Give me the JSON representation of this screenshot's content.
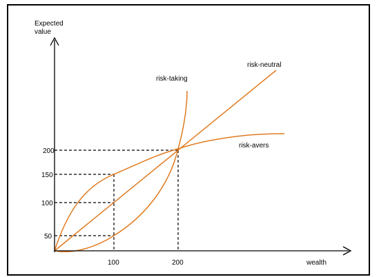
{
  "diagram": {
    "y_axis_label_line1": "Expected",
    "y_axis_label_line2": "value",
    "x_axis_label": "wealth",
    "y_ticks": [
      "200",
      "150",
      "100",
      "50"
    ],
    "x_ticks": [
      "100",
      "200"
    ],
    "curve_labels": {
      "risk_taking": "risk-taking",
      "risk_neutral": "risk-neutral",
      "risk_averse": "risk-avers"
    },
    "curve_color": "#E07A1F"
  }
}
